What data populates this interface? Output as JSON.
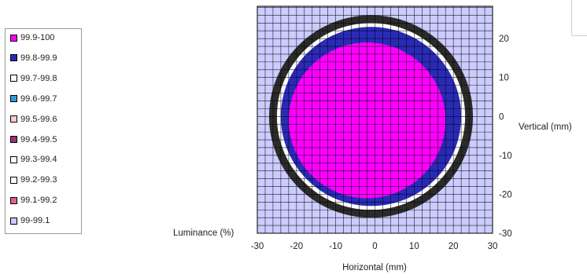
{
  "chart_data": {
    "type": "heatmap",
    "subtype": "contour",
    "title": "",
    "zlabel": "Luminance (%)",
    "xlabel": "Horizontal (mm)",
    "ylabel": "Vertical (mm)",
    "xlim": [
      -30,
      30
    ],
    "ylim": [
      -30,
      30
    ],
    "x_ticks": [
      "-30",
      "-20",
      "-10",
      "0",
      "10",
      "20",
      "30"
    ],
    "y_ticks": [
      "20",
      "10",
      "0",
      "-10",
      "-20",
      "-30"
    ],
    "grid": true,
    "legend_position": "left",
    "legend": [
      {
        "label": "99.9-100",
        "color": "#ff00ff"
      },
      {
        "label": "99.8-99.9",
        "color": "#2a2ab8"
      },
      {
        "label": "99.7-99.8",
        "color": "#ffffff"
      },
      {
        "label": "99.6-99.7",
        "color": "#3399dd"
      },
      {
        "label": "99.5-99.6",
        "color": "#ffcccc"
      },
      {
        "label": "99.4-99.5",
        "color": "#993377"
      },
      {
        "label": "99.3-99.4",
        "color": "#ffffff"
      },
      {
        "label": "99.2-99.3",
        "color": "#ffffff"
      },
      {
        "label": "99.1-99.2",
        "color": "#dd6688"
      },
      {
        "label": "99-99.1",
        "color": "#ccccff"
      }
    ],
    "regions": [
      {
        "band": "99.9-100",
        "shape": "approx. circle",
        "center": [
          -2,
          -1
        ],
        "radius_mm": 20
      },
      {
        "band": "99.8-99.9",
        "shape": "ring",
        "center": [
          -1,
          0
        ],
        "inner_radius_mm": 20,
        "outer_radius_mm": 23
      },
      {
        "band": "99.7-99.8",
        "shape": "ring",
        "center": [
          -1,
          0
        ],
        "inner_radius_mm": 23,
        "outer_radius_mm": 24
      },
      {
        "band": "99.3-99.4",
        "shape": "stepped ring",
        "center": [
          -1,
          0
        ],
        "inner_radius_mm": 24,
        "outer_radius_mm": 26
      },
      {
        "band": "99-99.1",
        "shape": "background"
      }
    ]
  }
}
